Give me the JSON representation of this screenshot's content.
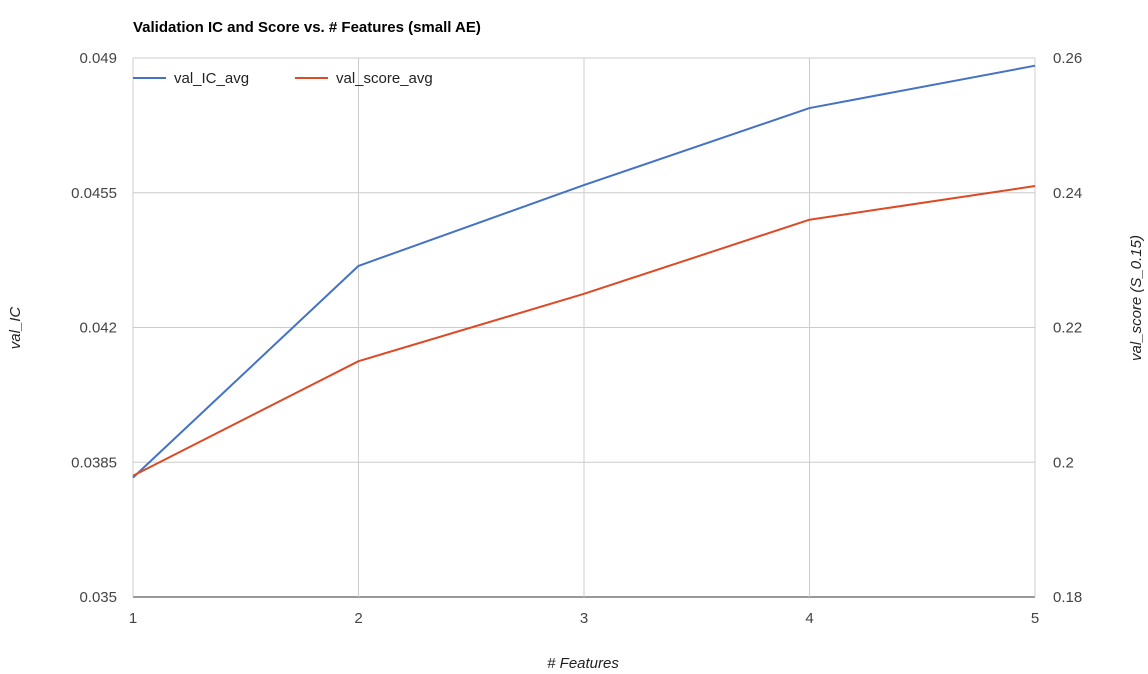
{
  "chart_data": {
    "type": "line",
    "title": "Validation IC and Score vs. # Features (small AE)",
    "xlabel": "# Features",
    "ylabel_left": "val_IC",
    "ylabel_right": "val_score (S_0.15)",
    "x": [
      1,
      2,
      3,
      4,
      5
    ],
    "x_ticks": [
      "1",
      "2",
      "3",
      "4",
      "5"
    ],
    "xlim": [
      1,
      5
    ],
    "ylim_left": [
      0.035,
      0.049
    ],
    "ylim_right": [
      0.18,
      0.26
    ],
    "y_ticks_left": [
      "0.035",
      "0.0385",
      "0.042",
      "0.0455",
      "0.049"
    ],
    "y_ticks_left_values": [
      0.035,
      0.0385,
      0.042,
      0.0455,
      0.049
    ],
    "y_ticks_right": [
      "0.18",
      "0.2",
      "0.22",
      "0.24",
      "0.26"
    ],
    "y_ticks_right_values": [
      0.18,
      0.2,
      0.22,
      0.24,
      0.26
    ],
    "grid": true,
    "legend_position": "top-left",
    "series": [
      {
        "name": "val_IC_avg",
        "axis": "left",
        "color": "#4472c4",
        "values": [
          0.0381,
          0.0436,
          0.0457,
          0.0477,
          0.0488
        ]
      },
      {
        "name": "val_score_avg",
        "axis": "right",
        "color": "#dc4a26",
        "values": [
          0.198,
          0.215,
          0.225,
          0.236,
          0.241
        ]
      }
    ]
  }
}
